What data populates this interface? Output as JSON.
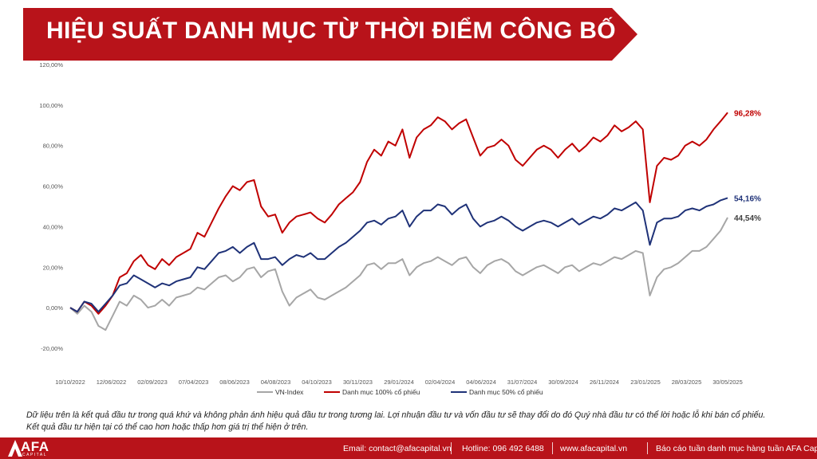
{
  "title": "HIỆU SUẤT DANH MỤC TỪ THỜI ĐIỂM CÔNG BỐ",
  "disclaimer": {
    "line1": "Dữ liệu trên là kết quả đầu tư trong quá khứ và không phản ánh hiệu quả đầu tư trong tương lai. Lợi nhuận đầu tư và vốn đầu tư sẽ thay đổi do đó Quý nhà đầu tư có thể lời hoặc lỗ khi bán cổ phiếu.",
    "line2": "Kết quả đầu tư hiện tại có thể cao hơn hoặc thấp hơn giá trị thể hiện ở trên."
  },
  "footer": {
    "logo_text": "AFA",
    "logo_sub": "CAPITAL",
    "email": "Email: contact@afacapital.vn",
    "hotline": "Hotline: 096 492 6488",
    "website": "www.afacapital.vn",
    "report": "Báo cáo tuần danh mục hàng tuần AFA Capital"
  },
  "colors": {
    "brand_red": "#b8131a",
    "vnindex": "#a6a6a6",
    "full": "#c00000",
    "half": "#1f3278"
  },
  "chart_data": {
    "type": "line",
    "ylim": [
      -20,
      120
    ],
    "ytick_values": [
      -20,
      0,
      20,
      40,
      60,
      80,
      100,
      120
    ],
    "ytick_labels": [
      "-20,00%",
      "0,00%",
      "20,00%",
      "40,00%",
      "60,00%",
      "80,00%",
      "100,00%",
      "120,00%"
    ],
    "x_labels": [
      "10/10/2022",
      "12/06/2022",
      "02/09/2023",
      "07/04/2023",
      "08/06/2023",
      "04/08/2023",
      "04/10/2023",
      "30/11/2023",
      "29/01/2024",
      "02/04/2024",
      "04/06/2024",
      "31/07/2024",
      "30/09/2024",
      "26/11/2024",
      "23/01/2025",
      "28/03/2025",
      "30/05/2025"
    ],
    "legend_position": "bottom",
    "series": [
      {
        "name": "VN-Index",
        "color": "#a6a6a6",
        "end_label": "44,54%",
        "values": [
          0,
          -3,
          1,
          -2,
          -9,
          -11,
          -4,
          3,
          1,
          6,
          4,
          0,
          1,
          4,
          1,
          5,
          6,
          7,
          10,
          9,
          12,
          15,
          16,
          13,
          15,
          19,
          20,
          15,
          18,
          19,
          8,
          1,
          5,
          7,
          9,
          5,
          4,
          6,
          8,
          10,
          13,
          16,
          21,
          22,
          19,
          22,
          22,
          24,
          16,
          20,
          22,
          23,
          25,
          23,
          21,
          24,
          25,
          20,
          17,
          21,
          23,
          24,
          22,
          18,
          16,
          18,
          20,
          21,
          19,
          17,
          20,
          21,
          18,
          20,
          22,
          21,
          23,
          25,
          24,
          26,
          28,
          27,
          6,
          15,
          19,
          20,
          22,
          25,
          28,
          28,
          30,
          34,
          38,
          44.5
        ]
      },
      {
        "name": "Danh mục 100% cổ phiếu",
        "color": "#c00000",
        "end_label": "96,28%",
        "values": [
          0,
          -2,
          3,
          1,
          -3,
          1,
          6,
          15,
          17,
          23,
          26,
          21,
          19,
          24,
          21,
          25,
          27,
          29,
          37,
          35,
          42,
          49,
          55,
          60,
          58,
          62,
          63,
          50,
          45,
          46,
          37,
          42,
          45,
          46,
          47,
          44,
          42,
          46,
          51,
          54,
          57,
          62,
          72,
          78,
          75,
          82,
          80,
          88,
          74,
          84,
          88,
          90,
          94,
          92,
          88,
          91,
          93,
          84,
          75,
          79,
          80,
          83,
          80,
          73,
          70,
          74,
          78,
          80,
          78,
          74,
          78,
          81,
          77,
          80,
          84,
          82,
          85,
          90,
          87,
          89,
          92,
          88,
          52,
          70,
          74,
          73,
          75,
          80,
          82,
          80,
          83,
          88,
          92,
          96.28
        ]
      },
      {
        "name": "Danh mục 50% cổ phiếu",
        "color": "#1f3278",
        "end_label": "54,16%",
        "values": [
          0,
          -2,
          3,
          2,
          -2,
          2,
          6,
          11,
          12,
          16,
          14,
          12,
          10,
          12,
          11,
          13,
          14,
          15,
          20,
          19,
          23,
          27,
          28,
          30,
          27,
          30,
          32,
          24,
          24,
          25,
          21,
          24,
          26,
          25,
          27,
          24,
          24,
          27,
          30,
          32,
          35,
          38,
          42,
          43,
          41,
          44,
          45,
          48,
          40,
          45,
          48,
          48,
          51,
          50,
          46,
          49,
          51,
          44,
          40,
          42,
          43,
          45,
          43,
          40,
          38,
          40,
          42,
          43,
          42,
          40,
          42,
          44,
          41,
          43,
          45,
          44,
          46,
          49,
          48,
          50,
          52,
          48,
          31,
          42,
          44,
          44,
          45,
          48,
          49,
          48,
          50,
          51,
          53,
          54.16
        ]
      }
    ]
  }
}
